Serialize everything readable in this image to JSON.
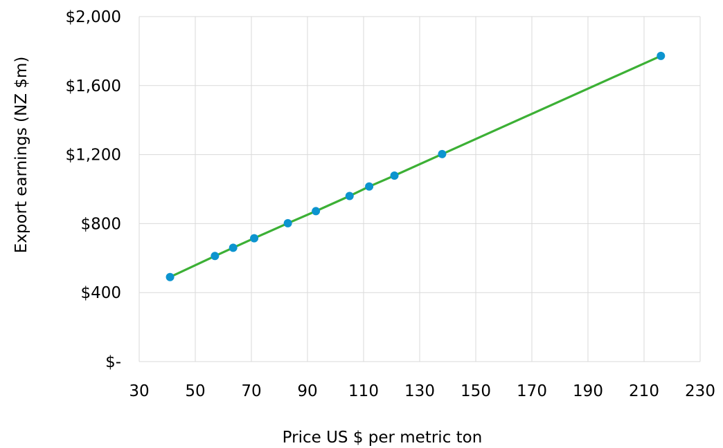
{
  "chart_data": {
    "type": "scatter",
    "title": "",
    "xlabel": "Price US $ per metric ton",
    "ylabel": "Export earnings (NZ $m)",
    "xlim": [
      30,
      230
    ],
    "ylim": [
      0,
      2000
    ],
    "x_ticks": [
      30,
      50,
      70,
      90,
      110,
      130,
      150,
      170,
      190,
      210,
      230
    ],
    "x_tick_labels": [
      "30",
      "50",
      "70",
      "90",
      "110",
      "130",
      "150",
      "170",
      "190",
      "210",
      "230"
    ],
    "y_ticks": [
      0,
      400,
      800,
      1200,
      1600,
      2000
    ],
    "y_tick_labels": [
      "$-",
      "$400",
      "$800",
      "$1,200",
      "$1,600",
      "$2,000"
    ],
    "grid": true,
    "legend": "none",
    "series": [
      {
        "x": [
          41,
          57,
          63.5,
          71,
          83,
          93,
          105,
          112,
          121,
          138,
          216
        ],
        "y": [
          490,
          612,
          660,
          715,
          802,
          872,
          960,
          1015,
          1078,
          1203,
          1772
        ],
        "line_color": "#3cb035",
        "marker_color": "#0c94cf"
      }
    ]
  }
}
